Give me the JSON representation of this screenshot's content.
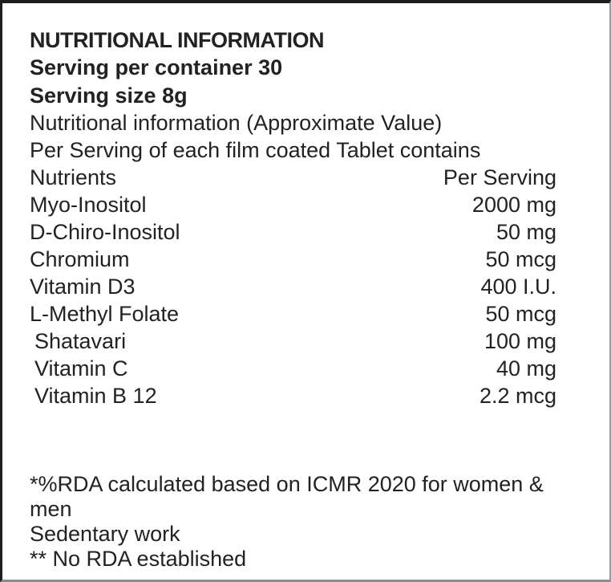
{
  "label": {
    "title": "NUTRITIONAL INFORMATION",
    "serving_per_container": "Serving per container 30",
    "serving_size": "Serving size 8g",
    "subtitle_line1": "Nutritional information (Approximate Value)",
    "subtitle_line2": "Per Serving of each film coated Tablet contains",
    "table": {
      "col_nutrient": "Nutrients",
      "col_amount": "Per Serving",
      "rows": [
        {
          "nutrient": "Myo-Inositol",
          "amount": "2000 mg"
        },
        {
          "nutrient": "D-Chiro-Inositol",
          "amount": "50 mg"
        },
        {
          "nutrient": "Chromium",
          "amount": "50 mcg"
        },
        {
          "nutrient": "Vitamin D3",
          "amount": "400 I.U."
        },
        {
          "nutrient": "L-Methyl Folate",
          "amount": "50 mcg"
        },
        {
          "nutrient": "Shatavari",
          "amount": "100 mg"
        },
        {
          "nutrient": "Vitamin C",
          "amount": "40 mg"
        },
        {
          "nutrient": "Vitamin B 12",
          "amount": "2.2 mcg"
        }
      ]
    },
    "footnotes": [
      "*%RDA calculated based on ICMR 2020 for women & men",
      "Sedentary work",
      "** No RDA established"
    ],
    "colors": {
      "text": "#242122",
      "border_dark": "#1d1d1d",
      "border_light": "#9b9ba0",
      "background": "#ffffff"
    }
  }
}
